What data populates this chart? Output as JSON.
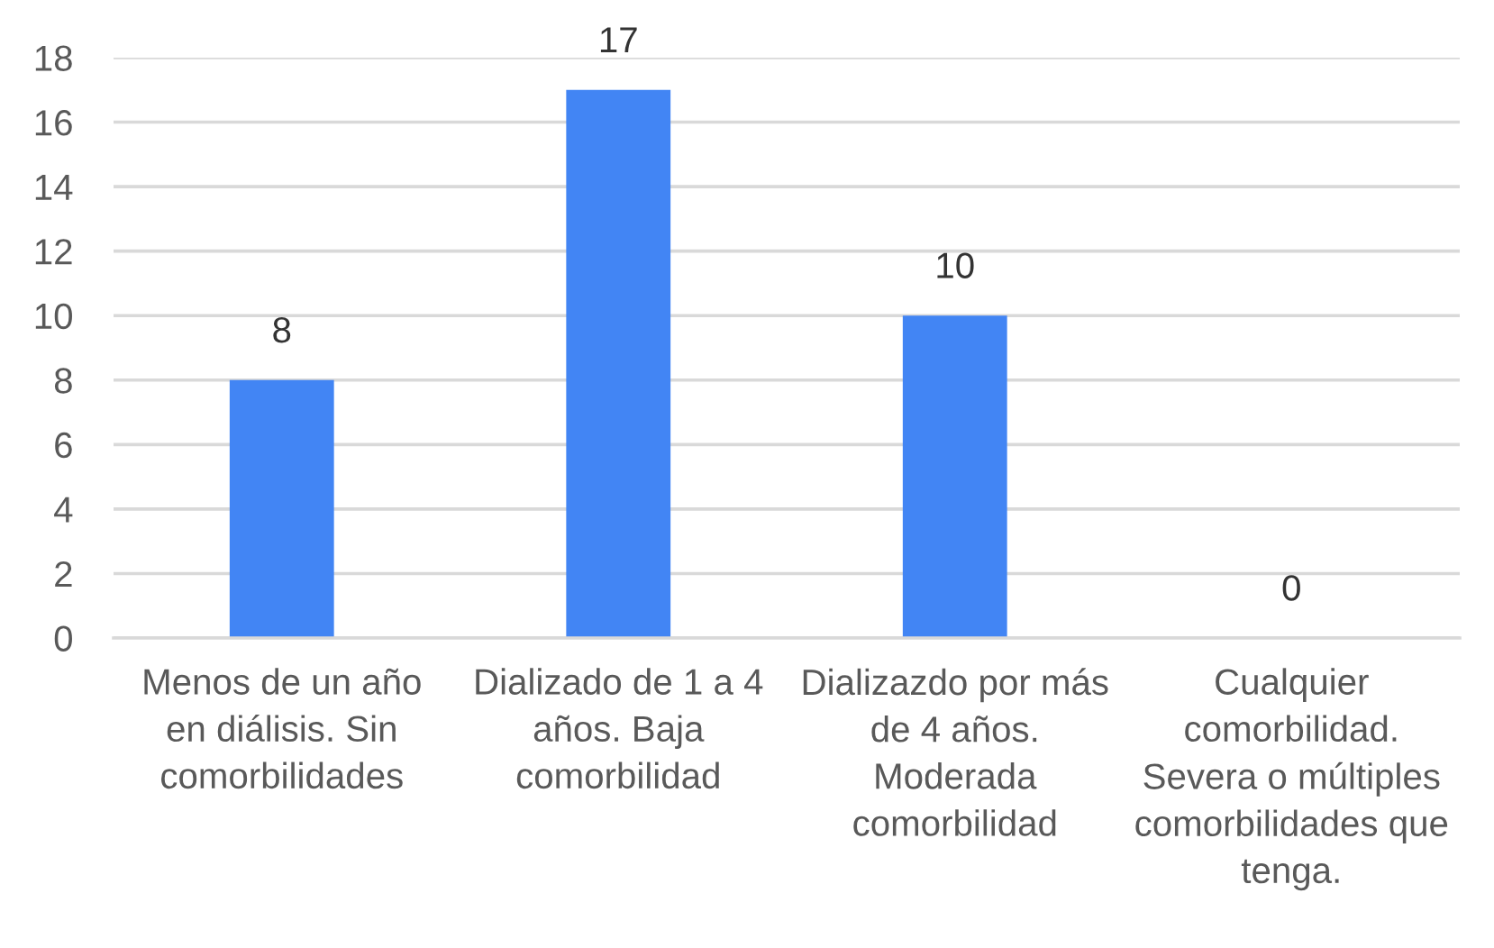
{
  "chart_data": {
    "type": "bar",
    "categories": [
      "Menos de un año\nen diálisis. Sin\ncomorbilidades",
      "Dializado de 1 a 4\naños. Baja\ncomorbilidad",
      "Dializazdo por más\nde 4 años.\nModerada\ncomorbilidad",
      "Cualquier\ncomorbilidad.\nSevera o múltiples\ncomorbilidades que\ntenga."
    ],
    "values": [
      8,
      17,
      10,
      0
    ],
    "color": "#4285f4",
    "ylim": [
      0,
      18
    ],
    "yticks": [
      0,
      2,
      4,
      6,
      8,
      10,
      12,
      14,
      16,
      18
    ],
    "grid": "y",
    "data_labels": true
  }
}
